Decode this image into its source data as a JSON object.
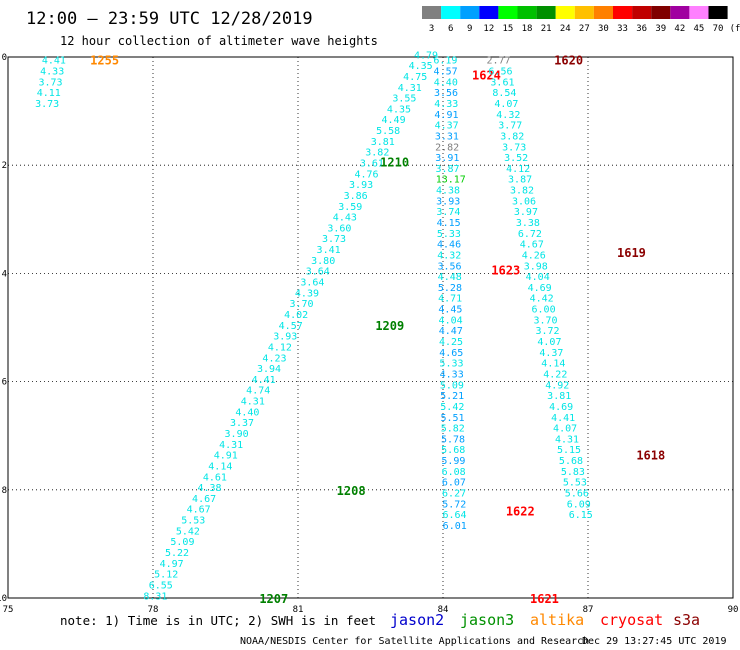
{
  "header": {
    "title": "12:00 – 23:59 UTC 12/28/2019",
    "subtitle": "12 hour collection of altimeter wave heights"
  },
  "colorbar": {
    "unit": "(ft)",
    "bins": [
      {
        "label": "3",
        "color": "#808080"
      },
      {
        "label": "6",
        "color": "#00ffff"
      },
      {
        "label": "9",
        "color": "#00a0ff"
      },
      {
        "label": "12",
        "color": "#0000ff"
      },
      {
        "label": "15",
        "color": "#00ff00"
      },
      {
        "label": "18",
        "color": "#00c000"
      },
      {
        "label": "21",
        "color": "#009000"
      },
      {
        "label": "24",
        "color": "#ffff00"
      },
      {
        "label": "27",
        "color": "#ffc000"
      },
      {
        "label": "30",
        "color": "#ff8000"
      },
      {
        "label": "33",
        "color": "#ff0000"
      },
      {
        "label": "36",
        "color": "#c00000"
      },
      {
        "label": "39",
        "color": "#800000"
      },
      {
        "label": "42",
        "color": "#a000a0"
      },
      {
        "label": "45",
        "color": "#ff80ff"
      },
      {
        "label": "70",
        "color": "#000000"
      }
    ]
  },
  "map": {
    "lon_range": [
      75,
      90
    ],
    "lat_range": [
      -10,
      0
    ],
    "x_ticks": [
      "75",
      "78",
      "81",
      "84",
      "87",
      "90"
    ],
    "y_ticks": [
      "0",
      "-2",
      "-4",
      "-6",
      "-8",
      "-10"
    ],
    "grid": "dotted"
  },
  "labels": {
    "note": "note: 1) Time is in UTC; 2) SWH is in feet",
    "footer": "NOAA/NESDIS Center for Satellite Applications and Research",
    "timestamp": "Dec 29 13:27:45 UTC 2019",
    "satellites": [
      {
        "name": "jason2",
        "color": "#0000cc"
      },
      {
        "name": "jason3",
        "color": "#009000"
      },
      {
        "name": "altika",
        "color": "#ff8800"
      },
      {
        "name": "cryosat",
        "color": "#ff0000"
      },
      {
        "name": "s3a",
        "color": "#8b0000"
      }
    ]
  },
  "chart_data": {
    "type": "scatter",
    "x_axis": "longitude",
    "y_axis": "latitude",
    "passes": [
      {
        "time": "1255",
        "time_color": "#ff8800",
        "time_pos": [
          76.7,
          -0.05
        ],
        "lon_start": 75.7,
        "lat_start": -0.05,
        "dlon": -0.035,
        "dlat": -0.2,
        "colors": [
          "#00e5e5"
        ],
        "values": [
          "4.41",
          "4.33",
          "3.73",
          "4.11",
          "3.73"
        ]
      },
      {
        "time": "1210",
        "time_color": "#008000",
        "time_pos": [
          82.7,
          -1.93
        ],
        "lon_start": 83.4,
        "lat_start": 0.05,
        "dlon": -0.112,
        "dlat": -0.2,
        "colors": [
          "#00e5e5"
        ],
        "values": [
          "4.79",
          "4.35",
          "4.75",
          "4.31",
          "3.55",
          "4.35",
          "4.49",
          "5.58",
          "3.81",
          "3.82",
          "3.61",
          "4.76",
          "3.93",
          "3.86",
          "3.59",
          "4.43",
          "3.60",
          "3.73",
          "3.41",
          "3.80",
          "3.64",
          "3.64",
          "4.39",
          "3.70",
          "4.02",
          "4.57",
          "3.93",
          "4.12",
          "4.23",
          "3.94",
          "4.41",
          "4.74",
          "4.31",
          "4.40",
          "3.37",
          "3.90",
          "4.31",
          "4.91",
          "4.14",
          "4.61",
          "4.38",
          "4.67",
          "4.67",
          "5.53",
          "5.42",
          "5.09",
          "5.22",
          "4.97",
          "5.12",
          "6.55",
          "8.31"
        ]
      },
      {
        "time": "1209",
        "time_color": "#008000",
        "time_pos": [
          82.6,
          -4.95
        ],
        "values": []
      },
      {
        "time": "1208",
        "time_color": "#008000",
        "time_pos": [
          81.8,
          -8.0
        ],
        "values": []
      },
      {
        "time": "1207",
        "time_color": "#008000",
        "time_pos": [
          80.2,
          -10.0
        ],
        "values": []
      },
      {
        "time": "1624",
        "time_color": "#ff0000",
        "time_pos": [
          84.6,
          -0.32
        ],
        "lon_start": 83.8,
        "lat_start": -0.05,
        "dlon": 0.0045,
        "dlat": -0.2,
        "colors": [
          "#00e5e5",
          "#00a0ff"
        ],
        "values": [
          "6.19",
          "4.57",
          "4.40",
          "3.56",
          "4.33",
          "4.91",
          "4.37",
          "3.31",
          "2.82",
          "3.91",
          "3.87",
          "13.17",
          "4.38",
          "3.93",
          "3.74",
          "4.15",
          "5.33",
          "4.46",
          "4.32",
          "3.56",
          "4.48",
          "5.28",
          "4.71",
          "4.45",
          "4.04",
          "4.47",
          "4.25",
          "4.65",
          "5.33",
          "4.33",
          "5.09",
          "5.21",
          "5.42",
          "5.51",
          "5.82",
          "5.78",
          "5.68",
          "5.99",
          "6.08",
          "6.07",
          "6.27",
          "5.72",
          "6.64",
          "6.01"
        ],
        "highlights": [
          [
            "2.82",
            "#808080"
          ],
          [
            "13.17",
            "#00cc00"
          ]
        ]
      },
      {
        "time": "1623",
        "time_color": "#ff0000",
        "time_pos": [
          85.0,
          -3.93
        ],
        "values": []
      },
      {
        "time": "1622",
        "time_color": "#ff0000",
        "time_pos": [
          85.3,
          -8.38
        ],
        "values": []
      },
      {
        "time": "1621",
        "time_color": "#ff0000",
        "time_pos": [
          85.8,
          -10.0
        ],
        "values": []
      },
      {
        "time": "1620",
        "time_color": "#8b0000",
        "time_pos": [
          86.3,
          -0.05
        ],
        "lon_start": 84.9,
        "lat_start": -0.05,
        "dlon": 0.0405,
        "dlat": -0.2,
        "colors": [
          "#00e5e5"
        ],
        "values": [
          "2.77",
          "6.56",
          "3.61",
          "8.54",
          "4.07",
          "4.32",
          "3.77",
          "3.82",
          "3.73",
          "3.52",
          "4.12",
          "3.87",
          "3.82",
          "3.06",
          "3.97",
          "3.38",
          "6.72",
          "4.67",
          "4.26",
          "3.98",
          "4.04",
          "4.69",
          "4.42",
          "6.00",
          "3.70",
          "3.72",
          "4.07",
          "4.37",
          "4.14",
          "4.22",
          "4.92",
          "3.81",
          "4.69",
          "4.41",
          "4.07",
          "4.31",
          "5.15",
          "5.68",
          "5.83",
          "5.53",
          "5.66",
          "6.09",
          "6.15"
        ],
        "highlights": [
          [
            "2.77",
            "#808080"
          ]
        ]
      },
      {
        "time": "1619",
        "time_color": "#8b0000",
        "time_pos": [
          87.6,
          -3.6
        ],
        "values": []
      },
      {
        "time": "1618",
        "time_color": "#8b0000",
        "time_pos": [
          88.0,
          -7.35
        ],
        "values": []
      }
    ]
  }
}
